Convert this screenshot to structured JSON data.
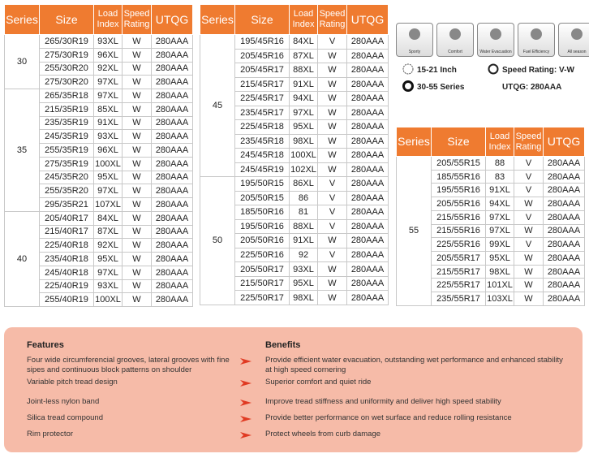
{
  "tables": [
    {
      "headers": [
        "Series",
        "Size",
        "Load Index",
        "Speed Rating",
        "UTQG"
      ],
      "groups": [
        {
          "series": "30",
          "rows": [
            [
              "265/30R19",
              "93XL",
              "W",
              "280AAA"
            ],
            [
              "275/30R19",
              "96XL",
              "W",
              "280AAA"
            ],
            [
              "255/30R20",
              "92XL",
              "W",
              "280AAA"
            ],
            [
              "275/30R20",
              "97XL",
              "W",
              "280AAA"
            ]
          ]
        },
        {
          "series": "35",
          "rows": [
            [
              "265/35R18",
              "97XL",
              "W",
              "280AAA"
            ],
            [
              "215/35R19",
              "85XL",
              "W",
              "280AAA"
            ],
            [
              "235/35R19",
              "91XL",
              "W",
              "280AAA"
            ],
            [
              "245/35R19",
              "93XL",
              "W",
              "280AAA"
            ],
            [
              "255/35R19",
              "96XL",
              "W",
              "280AAA"
            ],
            [
              "275/35R19",
              "100XL",
              "W",
              "280AAA"
            ],
            [
              "245/35R20",
              "95XL",
              "W",
              "280AAA"
            ],
            [
              "255/35R20",
              "97XL",
              "W",
              "280AAA"
            ],
            [
              "295/35R21",
              "107XL",
              "W",
              "280AAA"
            ]
          ]
        },
        {
          "series": "40",
          "rows": [
            [
              "205/40R17",
              "84XL",
              "W",
              "280AAA"
            ],
            [
              "215/40R17",
              "87XL",
              "W",
              "280AAA"
            ],
            [
              "225/40R18",
              "92XL",
              "W",
              "280AAA"
            ],
            [
              "235/40R18",
              "95XL",
              "W",
              "280AAA"
            ],
            [
              "245/40R18",
              "97XL",
              "W",
              "280AAA"
            ],
            [
              "225/40R19",
              "93XL",
              "W",
              "280AAA"
            ],
            [
              "255/40R19",
              "100XL",
              "W",
              "280AAA"
            ]
          ]
        }
      ]
    },
    {
      "headers": [
        "Series",
        "Size",
        "Load Index",
        "Speed Rating",
        "UTQG"
      ],
      "groups": [
        {
          "series": "45",
          "rows": [
            [
              "195/45R16",
              "84XL",
              "V",
              "280AAA"
            ],
            [
              "205/45R16",
              "87XL",
              "W",
              "280AAA"
            ],
            [
              "205/45R17",
              "88XL",
              "W",
              "280AAA"
            ],
            [
              "215/45R17",
              "91XL",
              "W",
              "280AAA"
            ],
            [
              "225/45R17",
              "94XL",
              "W",
              "280AAA"
            ],
            [
              "235/45R17",
              "97XL",
              "W",
              "280AAA"
            ],
            [
              "225/45R18",
              "95XL",
              "W",
              "280AAA"
            ],
            [
              "235/45R18",
              "98XL",
              "W",
              "280AAA"
            ],
            [
              "245/45R18",
              "100XL",
              "W",
              "280AAA"
            ],
            [
              "245/45R19",
              "102XL",
              "W",
              "280AAA"
            ]
          ]
        },
        {
          "series": "50",
          "rows": [
            [
              "195/50R15",
              "86XL",
              "V",
              "280AAA"
            ],
            [
              "205/50R15",
              "86",
              "V",
              "280AAA"
            ],
            [
              "185/50R16",
              "81",
              "V",
              "280AAA"
            ],
            [
              "195/50R16",
              "88XL",
              "V",
              "280AAA"
            ],
            [
              "205/50R16",
              "91XL",
              "W",
              "280AAA"
            ],
            [
              "225/50R16",
              "92",
              "V",
              "280AAA"
            ],
            [
              "205/50R17",
              "93XL",
              "W",
              "280AAA"
            ],
            [
              "215/50R17",
              "95XL",
              "W",
              "280AAA"
            ],
            [
              "225/50R17",
              "98XL",
              "W",
              "280AAA"
            ]
          ]
        }
      ]
    },
    {
      "headers": [
        "Series",
        "Size",
        "Load Index",
        "Speed Rating",
        "UTQG"
      ],
      "groups": [
        {
          "series": "55",
          "rows": [
            [
              "205/55R15",
              "88",
              "V",
              "280AAA"
            ],
            [
              "185/55R16",
              "83",
              "V",
              "280AAA"
            ],
            [
              "195/55R16",
              "91XL",
              "V",
              "280AAA"
            ],
            [
              "205/55R16",
              "94XL",
              "W",
              "280AAA"
            ],
            [
              "215/55R16",
              "97XL",
              "V",
              "280AAA"
            ],
            [
              "215/55R16",
              "97XL",
              "W",
              "280AAA"
            ],
            [
              "225/55R16",
              "99XL",
              "V",
              "280AAA"
            ],
            [
              "205/55R17",
              "95XL",
              "W",
              "280AAA"
            ],
            [
              "215/55R17",
              "98XL",
              "W",
              "280AAA"
            ],
            [
              "225/55R17",
              "101XL",
              "W",
              "280AAA"
            ],
            [
              "235/55R17",
              "103XL",
              "W",
              "280AAA"
            ]
          ]
        }
      ]
    }
  ],
  "icons": [
    "Sporty",
    "Comfort",
    "Water Evacuation",
    "Fuel Efficiency",
    "All season"
  ],
  "specs": [
    "15-21 Inch",
    "Speed Rating: V-W",
    "30-55 Series",
    "UTQG: 280AAA"
  ],
  "features": {
    "title": "Features",
    "items": [
      "Four wide circumferencial grooves, lateral grooves with fine sipes and continuous block patterns on shoulder",
      "Variable pitch tread design",
      "Joint-less nylon band",
      "Silica tread compound",
      "Rim protector"
    ]
  },
  "benefits": {
    "title": "Benefits",
    "items": [
      "Provide efficient water evacuation, outstanding wet performance and enhanced stability at high speed cornering",
      "Superior comfort and quiet ride",
      "Improve tread stiffness and uniformity and deliver high speed stability",
      "Provide better performance on wet surface and reduce rolling resistance",
      "Protect wheels from curb damage"
    ]
  }
}
